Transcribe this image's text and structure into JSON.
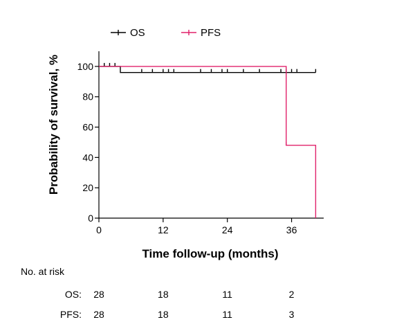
{
  "chart_data": {
    "type": "line",
    "title": "",
    "xlabel": "Time follow-up (months)",
    "ylabel": "Probability of survival, %",
    "xlim": [
      0,
      42
    ],
    "ylim": [
      0,
      110
    ],
    "xticks": [
      0,
      12,
      24,
      36
    ],
    "yticks": [
      0,
      20,
      40,
      60,
      80,
      100
    ],
    "legend": {
      "placement": "top"
    },
    "series": [
      {
        "name": "OS",
        "color": "#000000",
        "step": [
          [
            0,
            100
          ],
          [
            4,
            100
          ],
          [
            4,
            96
          ],
          [
            40.5,
            96
          ]
        ],
        "censor_x": [
          1,
          2,
          3,
          8,
          10,
          12,
          13,
          14,
          19,
          21,
          23,
          24,
          27,
          30,
          34,
          35,
          36,
          37,
          40.5
        ]
      },
      {
        "name": "PFS",
        "color": "#e0206a",
        "step": [
          [
            0,
            100
          ],
          [
            35,
            100
          ],
          [
            35,
            48
          ],
          [
            40.5,
            48
          ],
          [
            40.5,
            0
          ]
        ],
        "censor_x": [
          35
        ]
      }
    ]
  },
  "risk_table": {
    "title": "No. at risk",
    "times": [
      0,
      12,
      24,
      36
    ],
    "rows": [
      {
        "label": "OS:",
        "values": [
          "28",
          "18",
          "11",
          "2"
        ]
      },
      {
        "label": "PFS:",
        "values": [
          "28",
          "18",
          "11",
          "3"
        ]
      }
    ]
  }
}
